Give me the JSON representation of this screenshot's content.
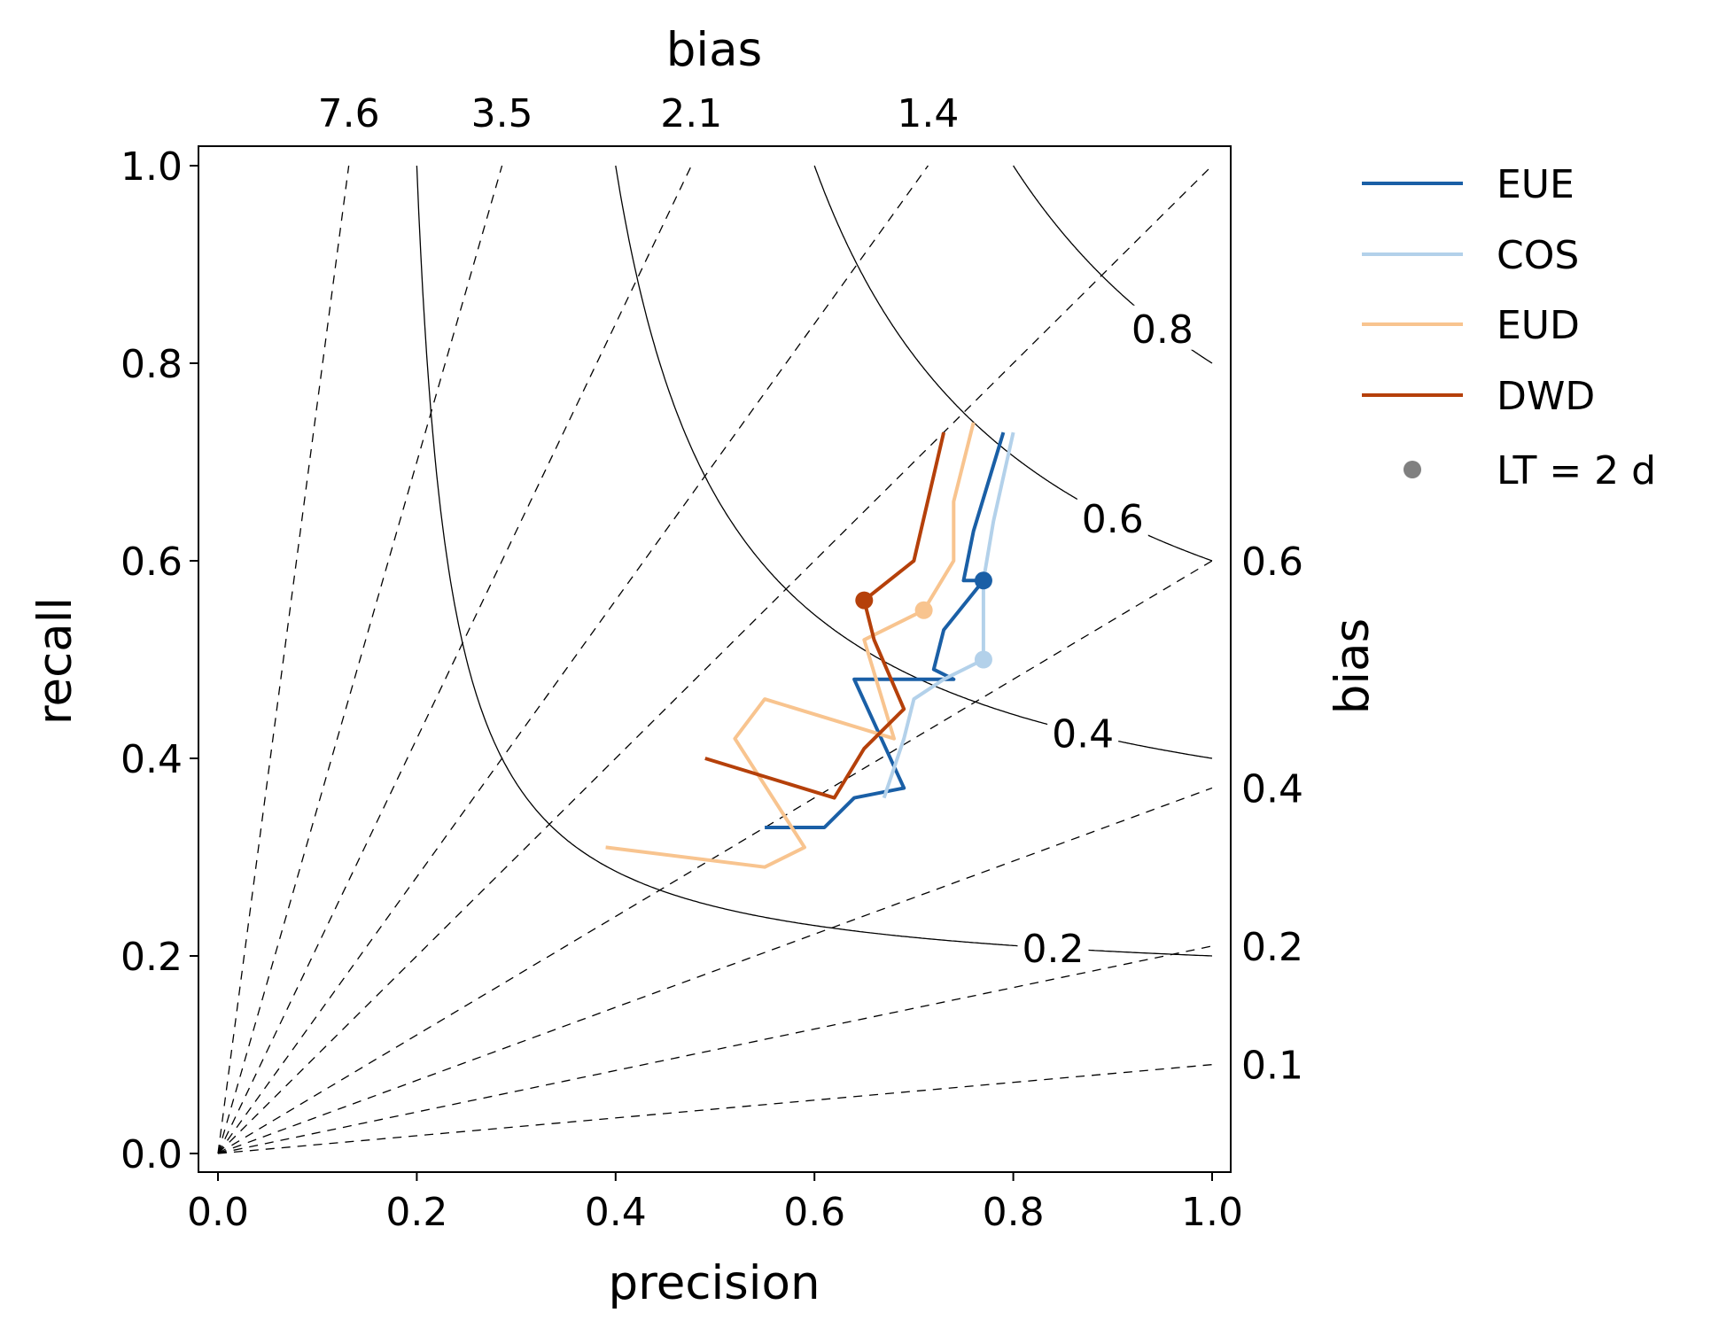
{
  "chart_data": {
    "type": "line",
    "xlabel": "precision",
    "ylabel": "recall",
    "top_axis_label": "bias",
    "right_axis_label": "bias",
    "xlim": [
      -0.02,
      1.02
    ],
    "ylim": [
      -0.02,
      1.02
    ],
    "x_ticks": [
      "0.0",
      "0.2",
      "0.4",
      "0.6",
      "0.8",
      "1.0"
    ],
    "y_ticks": [
      "0.0",
      "0.2",
      "0.4",
      "0.6",
      "0.8",
      "1.0"
    ],
    "bias_lines": [
      {
        "label": "7.6",
        "value": 7.6,
        "edge": "top"
      },
      {
        "label": "3.5",
        "value": 3.5,
        "edge": "top"
      },
      {
        "label": "2.1",
        "value": 2.1,
        "edge": "top"
      },
      {
        "label": "1.4",
        "value": 1.4,
        "edge": "top"
      },
      {
        "label": null,
        "value": 1.0,
        "edge": "top"
      },
      {
        "label": "0.6",
        "value": 0.6,
        "edge": "right"
      },
      {
        "label": "0.4",
        "value": 0.37,
        "edge": "right"
      },
      {
        "label": "0.2",
        "value": 0.21,
        "edge": "right"
      },
      {
        "label": "0.1",
        "value": 0.09,
        "edge": "right"
      }
    ],
    "csi_contours": [
      {
        "label": "0.2",
        "value": 0.2,
        "label_x": 0.84
      },
      {
        "label": "0.4",
        "value": 0.4,
        "label_x": 0.87
      },
      {
        "label": "0.6",
        "value": 0.6,
        "label_x": 0.9
      },
      {
        "label": "0.8",
        "value": 0.8,
        "label_x": 0.95
      }
    ],
    "series": [
      {
        "name": "EUE",
        "color": "#1a5fa6",
        "x": [
          0.79,
          0.76,
          0.75,
          0.77,
          0.73,
          0.72,
          0.74,
          0.64,
          0.69,
          0.64,
          0.61,
          0.55
        ],
        "y": [
          0.73,
          0.63,
          0.58,
          0.58,
          0.53,
          0.49,
          0.48,
          0.48,
          0.37,
          0.36,
          0.33,
          0.33
        ],
        "marker": {
          "x": 0.77,
          "y": 0.58
        }
      },
      {
        "name": "COS",
        "color": "#b3d1ea",
        "x": [
          0.8,
          0.78,
          0.77,
          0.77,
          0.73,
          0.7,
          0.69,
          0.67
        ],
        "y": [
          0.73,
          0.64,
          0.58,
          0.5,
          0.48,
          0.46,
          0.42,
          0.36
        ],
        "marker": {
          "x": 0.77,
          "y": 0.5
        }
      },
      {
        "name": "EUD",
        "color": "#f8c48f",
        "x": [
          0.76,
          0.74,
          0.74,
          0.71,
          0.65,
          0.68,
          0.55,
          0.52,
          0.59,
          0.55,
          0.39
        ],
        "y": [
          0.74,
          0.66,
          0.6,
          0.55,
          0.52,
          0.42,
          0.46,
          0.42,
          0.31,
          0.29,
          0.31
        ],
        "marker": {
          "x": 0.71,
          "y": 0.55
        }
      },
      {
        "name": "DWD",
        "color": "#b5400a",
        "x": [
          0.73,
          0.7,
          0.65,
          0.66,
          0.69,
          0.65,
          0.62,
          0.49
        ],
        "y": [
          0.73,
          0.6,
          0.56,
          0.52,
          0.45,
          0.41,
          0.36,
          0.4
        ],
        "marker": {
          "x": 0.65,
          "y": 0.56
        }
      }
    ],
    "marker_legend": {
      "label": "LT = 2 d",
      "color": "#808080"
    }
  },
  "legend": {
    "entries": [
      "EUE",
      "COS",
      "EUD",
      "DWD"
    ],
    "marker_label": "LT = 2 d"
  }
}
